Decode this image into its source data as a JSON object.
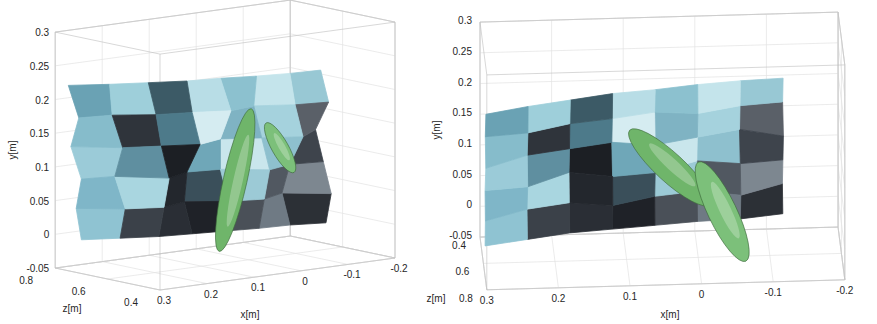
{
  "chart_data": [
    {
      "type": "surface3d",
      "xlabel": "x[m]",
      "ylabel": "y[m]",
      "zlabel": "z[m]",
      "xlim": [
        -0.2,
        0.3
      ],
      "ylim": [
        -0.05,
        0.3
      ],
      "zlim": [
        0.4,
        0.8
      ],
      "xticks": [
        -0.2,
        -0.1,
        0,
        0.1,
        0.2,
        0.3
      ],
      "yticks": [
        -0.05,
        0,
        0.05,
        0.1,
        0.15,
        0.2,
        0.25,
        0.3
      ],
      "zticks": [
        0.4,
        0.6,
        0.8
      ],
      "grid": true,
      "surface": {
        "x": [
          0.3,
          0.24,
          0.18,
          0.12,
          0.06,
          0,
          -0.06,
          -0.12
        ],
        "y": [
          0,
          0.045,
          0.09,
          0.135,
          0.18,
          0.225
        ],
        "z": [
          [
            0.7,
            0.66,
            0.62,
            0.6,
            0.58,
            0.56,
            0.55,
            0.52
          ],
          [
            0.72,
            0.64,
            0.6,
            0.63,
            0.57,
            0.54,
            0.58,
            0.5
          ],
          [
            0.7,
            0.68,
            0.58,
            0.62,
            0.6,
            0.52,
            0.55,
            0.53
          ],
          [
            0.74,
            0.65,
            0.61,
            0.57,
            0.6,
            0.55,
            0.5,
            0.56
          ],
          [
            0.71,
            0.69,
            0.63,
            0.6,
            0.56,
            0.58,
            0.53,
            0.51
          ],
          [
            0.75,
            0.7,
            0.66,
            0.62,
            0.6,
            0.57,
            0.55,
            0.54
          ]
        ],
        "colors": [
          [
            "#8fc3d2",
            "#3b4149",
            "#2a2e35",
            "#1f2228",
            "#4a5058",
            "#6f7a84",
            "#2c3036"
          ],
          [
            "#7fb6c8",
            "#a9d6e0",
            "#23272d",
            "#3a4f5a",
            "#9ccad6",
            "#515861",
            "#7d8790"
          ],
          [
            "#9bcbd8",
            "#5f8fa0",
            "#1c1f24",
            "#6fa7b8",
            "#c9e6ec",
            "#8ec0ce",
            "#3e444c"
          ],
          [
            "#86bccb",
            "#2f343b",
            "#4d7a8a",
            "#d5ecf1",
            "#7fb3c3",
            "#a5d2dd",
            "#5a6068"
          ],
          [
            "#6aa2b4",
            "#9ecfda",
            "#3c5a66",
            "#b8dde6",
            "#8cc1cf",
            "#c4e4eb",
            "#98c8d4"
          ]
        ]
      },
      "objects": [
        {
          "x": [
            0,
            0.057
          ],
          "y": [
            0.157,
            -0.015
          ],
          "z": [
            0.6,
            0.6
          ],
          "width": 0.05,
          "color": "#6fb56a"
        },
        {
          "x": [
            -0.046,
            -0.088
          ],
          "y": [
            0.138,
            0.082
          ],
          "z": [
            0.6,
            0.6
          ],
          "width": 0.035,
          "color": "#7cc07a"
        }
      ]
    },
    {
      "type": "surface3d",
      "xlabel": "x[m]",
      "ylabel": "y[m]",
      "zlabel": "z[m]",
      "xlim": [
        -0.2,
        0.3
      ],
      "ylim": [
        -0.05,
        0.3
      ],
      "zlim": [
        0.4,
        0.8
      ],
      "xticks": [
        -0.2,
        -0.1,
        0,
        0.1,
        0.2,
        0.3
      ],
      "yticks": [
        -0.05,
        0,
        0.05,
        0.1,
        0.15,
        0.2,
        0.25,
        0.3
      ],
      "zticks": [
        0.4,
        0.6,
        0.8
      ],
      "grid": true,
      "surface": {
        "x": [
          0.3,
          0.24,
          0.18,
          0.12,
          0.06,
          0,
          -0.06,
          -0.12
        ],
        "y": [
          0,
          0.045,
          0.09,
          0.135,
          0.18,
          0.225
        ],
        "z": [
          [
            0.7,
            0.66,
            0.62,
            0.6,
            0.58,
            0.56,
            0.55,
            0.52
          ],
          [
            0.72,
            0.64,
            0.6,
            0.63,
            0.57,
            0.54,
            0.58,
            0.5
          ],
          [
            0.7,
            0.68,
            0.58,
            0.62,
            0.6,
            0.52,
            0.55,
            0.53
          ],
          [
            0.74,
            0.65,
            0.61,
            0.57,
            0.6,
            0.55,
            0.5,
            0.56
          ],
          [
            0.71,
            0.69,
            0.63,
            0.6,
            0.56,
            0.58,
            0.53,
            0.51
          ],
          [
            0.75,
            0.7,
            0.66,
            0.62,
            0.6,
            0.57,
            0.55,
            0.54
          ]
        ],
        "colors": [
          [
            "#8fc3d2",
            "#3b4149",
            "#2a2e35",
            "#1f2228",
            "#4a5058",
            "#6f7a84",
            "#2c3036"
          ],
          [
            "#7fb6c8",
            "#a9d6e0",
            "#23272d",
            "#3a4f5a",
            "#9ccad6",
            "#515861",
            "#7d8790"
          ],
          [
            "#9bcbd8",
            "#5f8fa0",
            "#1c1f24",
            "#6fa7b8",
            "#c9e6ec",
            "#8ec0ce",
            "#3e444c"
          ],
          [
            "#86bccb",
            "#2f343b",
            "#4d7a8a",
            "#d5ecf1",
            "#7fb3c3",
            "#a5d2dd",
            "#5a6068"
          ],
          [
            "#6aa2b4",
            "#9ecfda",
            "#3c5a66",
            "#b8dde6",
            "#8cc1cf",
            "#c4e4eb",
            "#98c8d4"
          ]
        ]
      },
      "objects": [
        {
          "x": [
            0.081,
            -0.002
          ],
          "y": [
            0.144,
            0.052
          ],
          "z": [
            0.6,
            0.6
          ],
          "width": 0.04,
          "color": "#6fb56a"
        },
        {
          "x": [
            -0.009,
            -0.058
          ],
          "y": [
            0.084,
            -0.037
          ],
          "z": [
            0.6,
            0.6
          ],
          "width": 0.04,
          "color": "#7cc07a"
        }
      ]
    }
  ]
}
